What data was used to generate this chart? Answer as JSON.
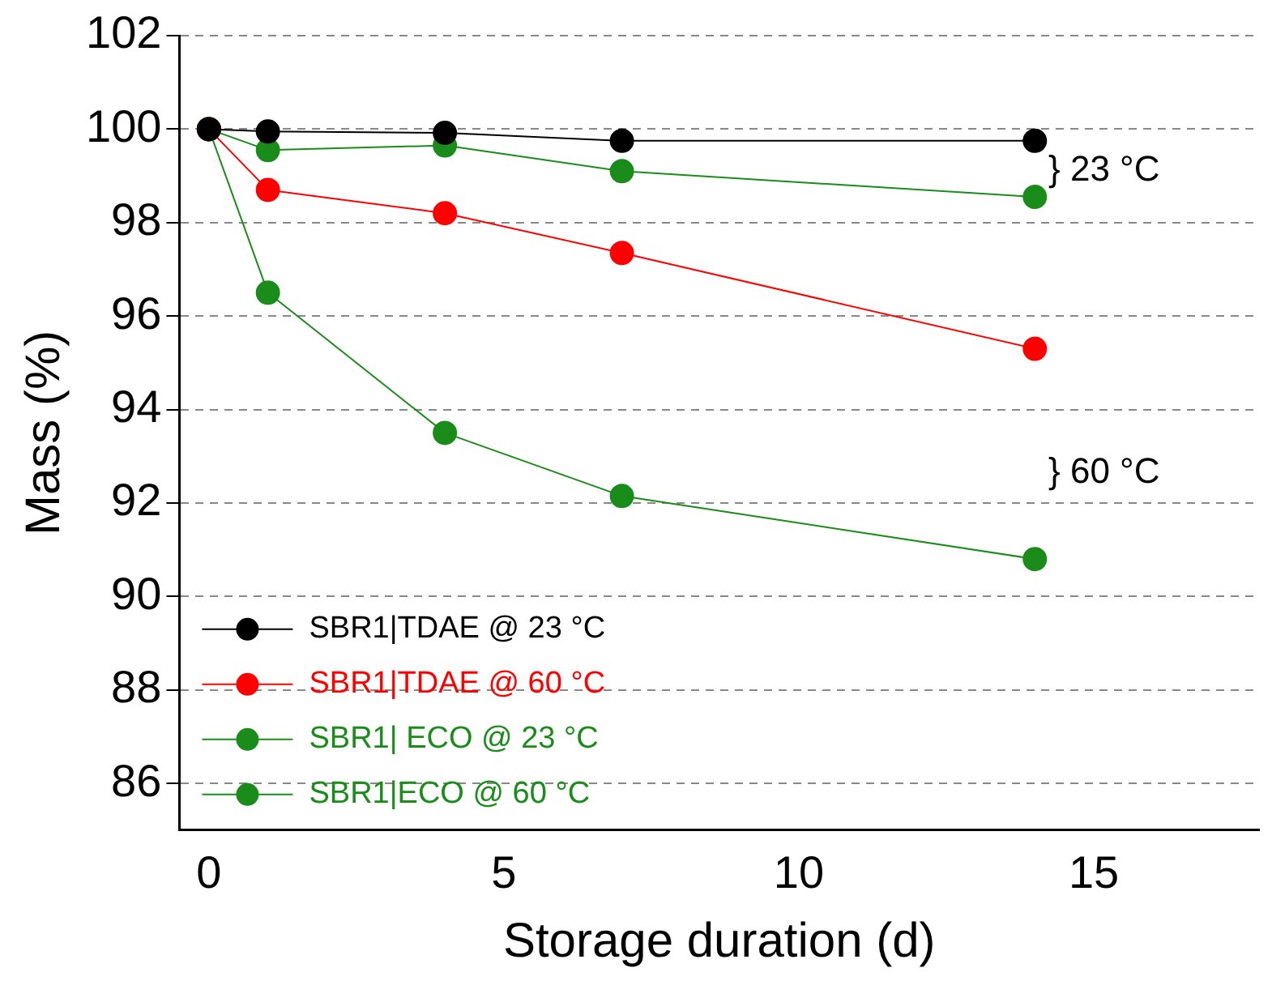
{
  "chart_data": {
    "type": "line",
    "xlabel": "Storage duration (d)",
    "ylabel": "Mass (%)",
    "x": [
      0,
      1,
      4,
      7,
      14
    ],
    "series": [
      {
        "name": "SBR1|TDAE @ 23 °C",
        "color": "#000000",
        "values": [
          100,
          99.95,
          99.92,
          99.75,
          99.75
        ]
      },
      {
        "name": "SBR1|TDAE @ 60 °C",
        "color": "#ff0000",
        "values": [
          100,
          98.7,
          98.2,
          97.35,
          95.3
        ]
      },
      {
        "name": "SBR1| ECO @ 23 °C",
        "color": "#1a8c1a",
        "values": [
          100,
          99.55,
          99.65,
          99.1,
          98.55
        ]
      },
      {
        "name": "SBR1|ECO @ 60 °C",
        "color": "#1a8c1a",
        "values": [
          100,
          96.5,
          93.5,
          92.15,
          90.8
        ]
      }
    ],
    "xlim": [
      -0.5,
      17.8
    ],
    "xticks": [
      0,
      5,
      10,
      15
    ],
    "ylim": [
      85,
      102
    ],
    "yticks": [
      86,
      88,
      90,
      92,
      94,
      96,
      98,
      100,
      102
    ],
    "grid": "y",
    "legend": "bottom left",
    "marker": "circle",
    "line_style": "solid",
    "annotations": [
      "} 23 °C",
      "} 60 °C"
    ]
  }
}
